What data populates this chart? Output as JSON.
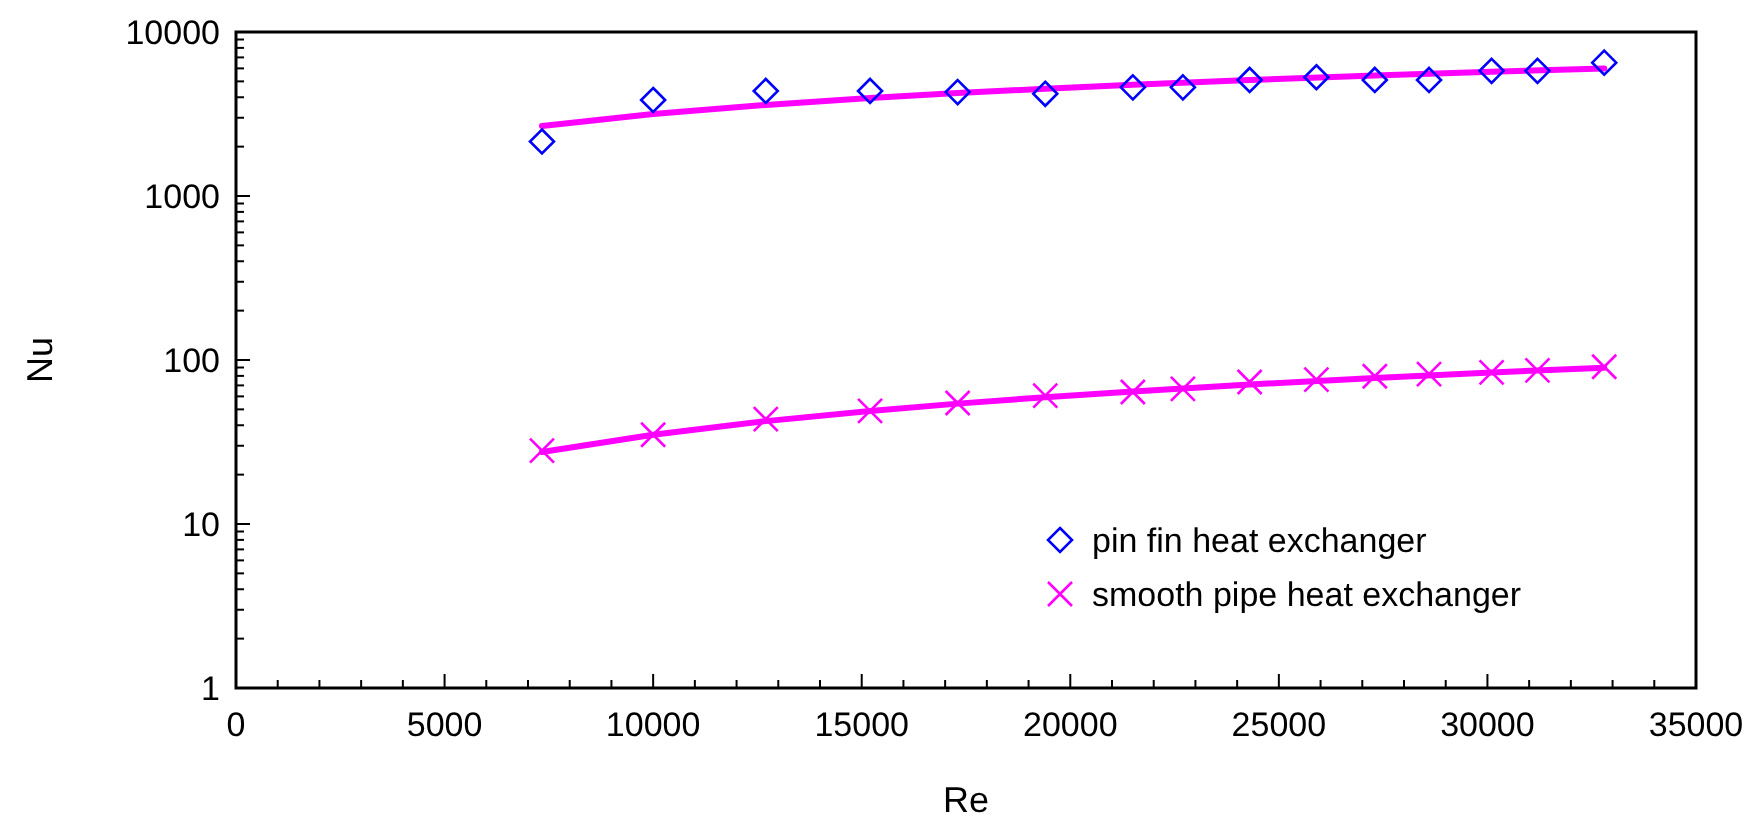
{
  "chart_data": {
    "type": "scatter",
    "xlabel": "Re",
    "ylabel": "Nu",
    "log": "y",
    "grid": false,
    "legend": "bottom right",
    "xlim": [
      0,
      35000
    ],
    "ylim": [
      1,
      10000
    ],
    "xticks": [
      0,
      {
        "value": 1000,
        "label": null
      },
      {
        "value": 2000,
        "label": null
      },
      {
        "value": 3000,
        "label": null
      },
      {
        "value": 4000,
        "label": null
      },
      5000,
      {
        "value": 6000,
        "label": null
      },
      {
        "value": 7000,
        "label": null
      },
      {
        "value": 8000,
        "label": null
      },
      {
        "value": 9000,
        "label": null
      },
      10000,
      {
        "value": 11000,
        "label": null
      },
      {
        "value": 12000,
        "label": null
      },
      {
        "value": 13000,
        "label": null
      },
      {
        "value": 14000,
        "label": null
      },
      15000,
      {
        "value": 16000,
        "label": null
      },
      {
        "value": 17000,
        "label": null
      },
      {
        "value": 18000,
        "label": null
      },
      {
        "value": 19000,
        "label": null
      },
      20000,
      {
        "value": 21000,
        "label": null
      },
      {
        "value": 22000,
        "label": null
      },
      {
        "value": 23000,
        "label": null
      },
      {
        "value": 24000,
        "label": null
      },
      25000,
      {
        "value": 26000,
        "label": null
      },
      {
        "value": 27000,
        "label": null
      },
      {
        "value": 28000,
        "label": null
      },
      {
        "value": 29000,
        "label": null
      },
      30000,
      {
        "value": 31000,
        "label": null
      },
      {
        "value": 32000,
        "label": null
      },
      {
        "value": 33000,
        "label": null
      },
      {
        "value": 34000,
        "label": null
      },
      35000
    ],
    "yticks": [
      1,
      {
        "value": 2,
        "label": null
      },
      {
        "value": 3,
        "label": null
      },
      {
        "value": 4,
        "label": null
      },
      {
        "value": 5,
        "label": null
      },
      {
        "value": 6,
        "label": null
      },
      {
        "value": 7,
        "label": null
      },
      {
        "value": 8,
        "label": null
      },
      {
        "value": 9,
        "label": null
      },
      10,
      {
        "value": 20,
        "label": null
      },
      {
        "value": 30,
        "label": null
      },
      {
        "value": 40,
        "label": null
      },
      {
        "value": 50,
        "label": null
      },
      {
        "value": 60,
        "label": null
      },
      {
        "value": 70,
        "label": null
      },
      {
        "value": 80,
        "label": null
      },
      {
        "value": 90,
        "label": null
      },
      100,
      {
        "value": 200,
        "label": null
      },
      {
        "value": 300,
        "label": null
      },
      {
        "value": 400,
        "label": null
      },
      {
        "value": 500,
        "label": null
      },
      {
        "value": 600,
        "label": null
      },
      {
        "value": 700,
        "label": null
      },
      {
        "value": 800,
        "label": null
      },
      {
        "value": 900,
        "label": null
      },
      1000,
      {
        "value": 2000,
        "label": null
      },
      {
        "value": 3000,
        "label": null
      },
      {
        "value": 4000,
        "label": null
      },
      {
        "value": 5000,
        "label": null
      },
      {
        "value": 6000,
        "label": null
      },
      {
        "value": 7000,
        "label": null
      },
      {
        "value": 8000,
        "label": null
      },
      {
        "value": 9000,
        "label": null
      },
      10000
    ],
    "series": [
      {
        "type": "line",
        "color": "#ff00ff",
        "marker": "none",
        "line_style": "solid",
        "x": [
          7335,
          10000,
          12700,
          15200,
          17300,
          19400,
          21500,
          24300,
          27300,
          30100,
          32800
        ],
        "values": [
          2670,
          3160,
          3590,
          3960,
          4240,
          4510,
          4770,
          5100,
          5430,
          5720,
          5990
        ]
      },
      {
        "type": "line",
        "color": "#ff00ff",
        "marker": "none",
        "line_style": "solid",
        "x": [
          7335,
          10000,
          12700,
          15200,
          17300,
          19400,
          21500,
          24300,
          27300,
          30100,
          32800
        ],
        "values": [
          27.5,
          35,
          42.4,
          48.9,
          54.2,
          59.3,
          64.3,
          70.9,
          77.7,
          83.9,
          89.8
        ]
      },
      {
        "name": "pin fin heat exchanger",
        "color": "#0000ff",
        "marker": "diamond",
        "x": [
          7335,
          10000,
          12700,
          15200,
          17300,
          19400,
          21500,
          22700,
          24300,
          25900,
          27300,
          28600,
          30100,
          31200,
          32800
        ],
        "values": [
          2150,
          3850,
          4370,
          4370,
          4300,
          4200,
          4600,
          4600,
          5100,
          5300,
          5100,
          5100,
          5800,
          5800,
          6500
        ]
      },
      {
        "name": "smooth pipe heat exchanger",
        "color": "#ff00ff",
        "marker": "cross",
        "x": [
          7335,
          10000,
          12700,
          15200,
          17300,
          19400,
          21500,
          22700,
          24300,
          25900,
          27300,
          28600,
          30100,
          31200,
          32800
        ],
        "values": [
          28,
          35,
          43.6,
          49,
          54.7,
          60.7,
          63.8,
          66.7,
          73.4,
          76,
          79.6,
          82,
          84,
          86.5,
          91
        ]
      }
    ]
  }
}
